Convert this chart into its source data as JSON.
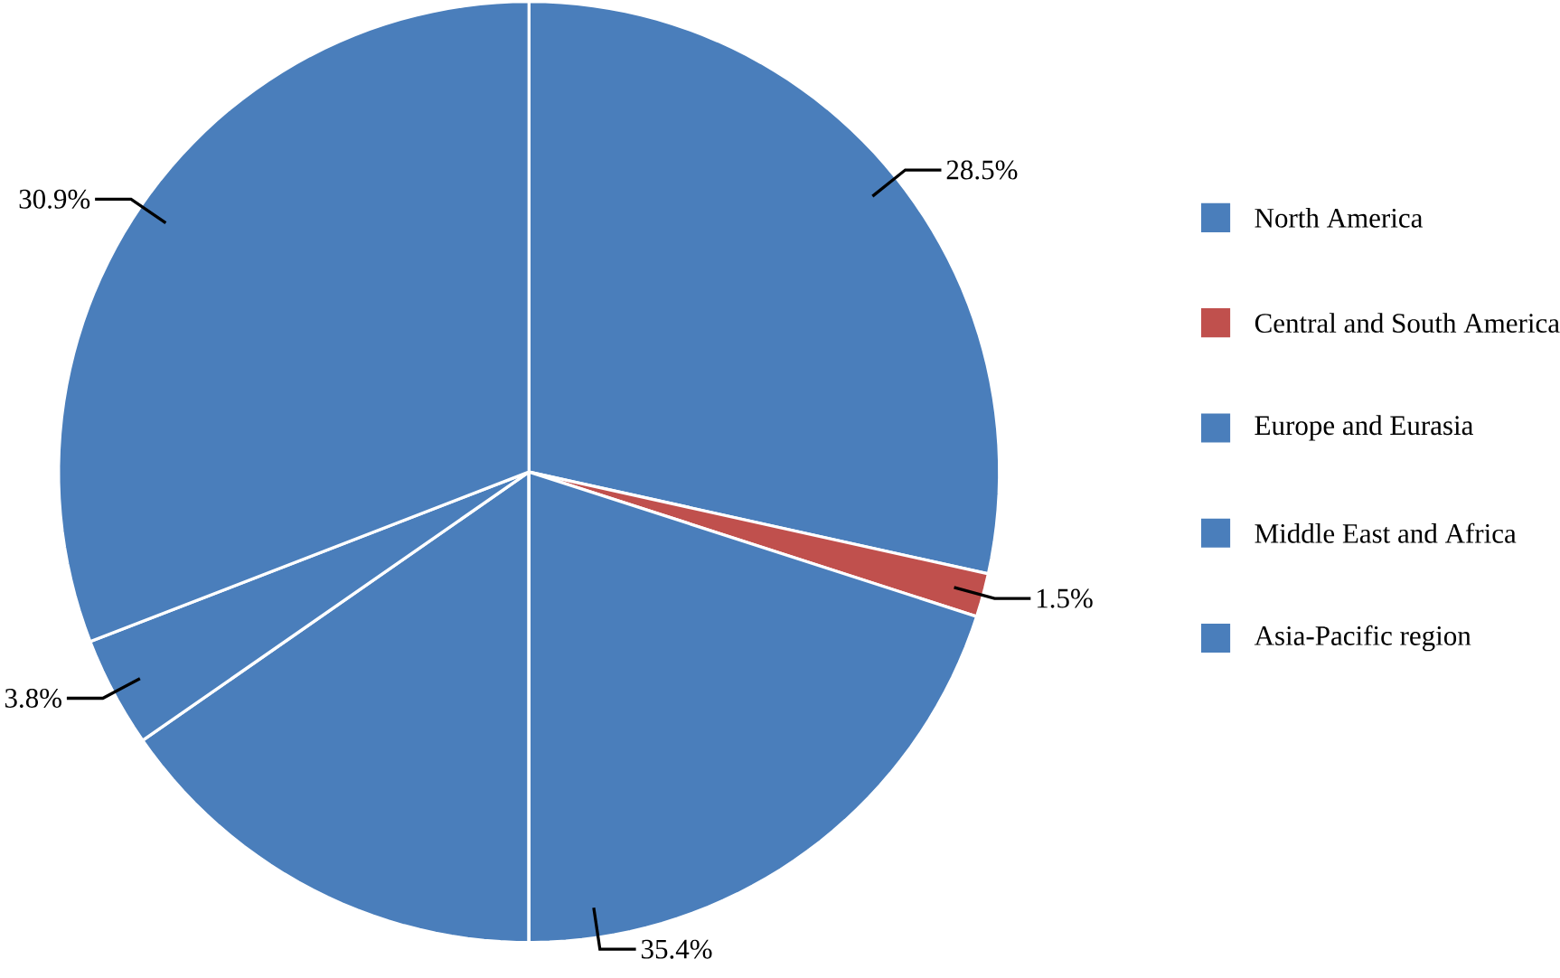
{
  "chart_data": {
    "type": "pie",
    "categories": [
      "North America",
      "Central and South America",
      "Europe and Eurasia",
      "Middle East and Africa",
      "Asia-Pacific region"
    ],
    "values": [
      28.5,
      1.5,
      35.4,
      3.8,
      30.9
    ],
    "colors": [
      "#4a7ebb",
      "#c0504d",
      "#4a7ebb",
      "#4a7ebb",
      "#4a7ebb"
    ],
    "value_labels": [
      "28.5%",
      "1.5%",
      "35.4%",
      "3.8%",
      "30.9%"
    ],
    "legend": "right"
  }
}
